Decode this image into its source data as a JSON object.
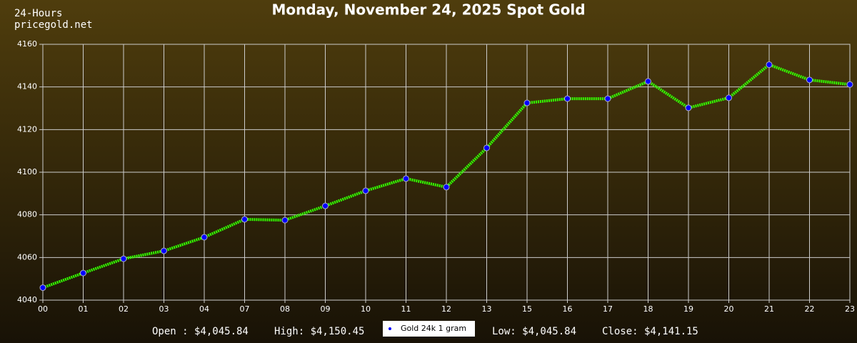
{
  "chart_data": {
    "type": "line",
    "title": "Monday, November 24, 2025 Spot Gold",
    "site_lines": [
      "24-Hours",
      "pricegold.net"
    ],
    "categories": [
      "00",
      "01",
      "02",
      "03",
      "04",
      "07",
      "08",
      "09",
      "10",
      "11",
      "12",
      "13",
      "15",
      "16",
      "17",
      "18",
      "19",
      "20",
      "21",
      "22",
      "23"
    ],
    "series": [
      {
        "name": "Gold 24k 1 gram",
        "color": "#33ff00",
        "marker_color": "#0000ff",
        "values": [
          4045.84,
          4052.7,
          4059.4,
          4063.1,
          4069.5,
          4077.9,
          4077.5,
          4084.2,
          4091.3,
          4097,
          4093,
          4111.4,
          4132.5,
          4134.5,
          4134.5,
          4142.6,
          4130.2,
          4134.9,
          4150.45,
          4143.3,
          4141.15
        ]
      }
    ],
    "ylim": [
      4040,
      4160
    ],
    "yticks": [
      4040,
      4060,
      4080,
      4100,
      4120,
      4140,
      4160
    ],
    "grid": true,
    "stats_left": [
      "Open : $4,045.84",
      "High: $4,150.45"
    ],
    "stats_right": [
      "Low: $4,045.84",
      "Close: $4,141.15"
    ]
  }
}
